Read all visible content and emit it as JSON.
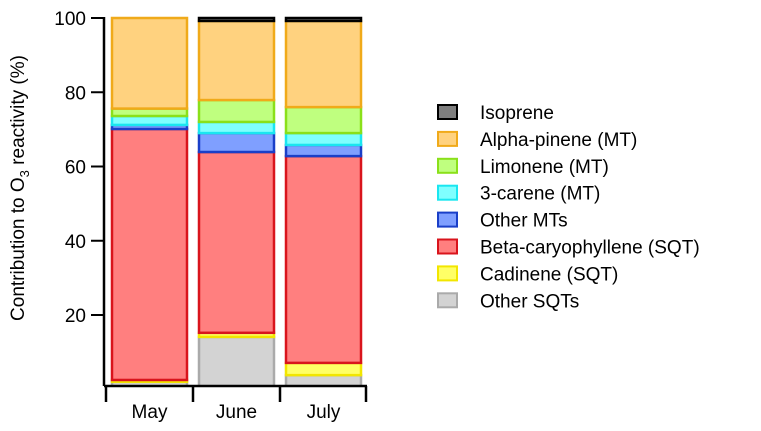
{
  "chart_data": {
    "type": "bar",
    "stacked": true,
    "title": "",
    "xlabel": "",
    "ylabel": "Contribution to O3 reactivity (%)",
    "ylabel_parts": {
      "before": "Contribution to O",
      "subscript": "3",
      "after": " reactivity (%)"
    },
    "ylim": [
      2,
      100
    ],
    "yticks": [
      20,
      40,
      60,
      80,
      100
    ],
    "categories": [
      "May",
      "June",
      "July"
    ],
    "legend_position": "right",
    "series": [
      {
        "name": "Other SQTs",
        "fill": "#d3d3d3",
        "stroke": "#aaaaaa",
        "values": [
          2.0,
          14.1,
          3.8
        ]
      },
      {
        "name": "Cadinene (SQT)",
        "fill": "#ffff66",
        "stroke": "#f2e600",
        "values": [
          0.5,
          1.1,
          3.3
        ]
      },
      {
        "name": "Beta-caryophyllene (SQT)",
        "fill": "#ff7f7f",
        "stroke": "#d9141c",
        "values": [
          67.6,
          48.7,
          55.7
        ]
      },
      {
        "name": "Other MTs",
        "fill": "#7f9fff",
        "stroke": "#1a3fc8",
        "values": [
          1.1,
          5.1,
          3.0
        ]
      },
      {
        "name": "3-carene (MT)",
        "fill": "#7fffff",
        "stroke": "#1ae6f0",
        "values": [
          2.4,
          3.0,
          3.2
        ]
      },
      {
        "name": "Limonene (MT)",
        "fill": "#bfff7f",
        "stroke": "#8ae01a",
        "values": [
          2.0,
          5.9,
          7.0
        ]
      },
      {
        "name": "Alpha-pinene (MT)",
        "fill": "#ffd27f",
        "stroke": "#f0aa1a",
        "values": [
          24.4,
          21.3,
          23.2
        ]
      },
      {
        "name": "Isoprene",
        "fill": "#7f7f7f",
        "stroke": "#000000",
        "values": [
          0.0,
          0.8,
          0.8
        ]
      }
    ],
    "legend_order": [
      "Isoprene",
      "Alpha-pinene (MT)",
      "Limonene (MT)",
      "3-carene (MT)",
      "Other MTs",
      "Beta-caryophyllene (SQT)",
      "Cadinene (SQT)",
      "Other SQTs"
    ]
  }
}
